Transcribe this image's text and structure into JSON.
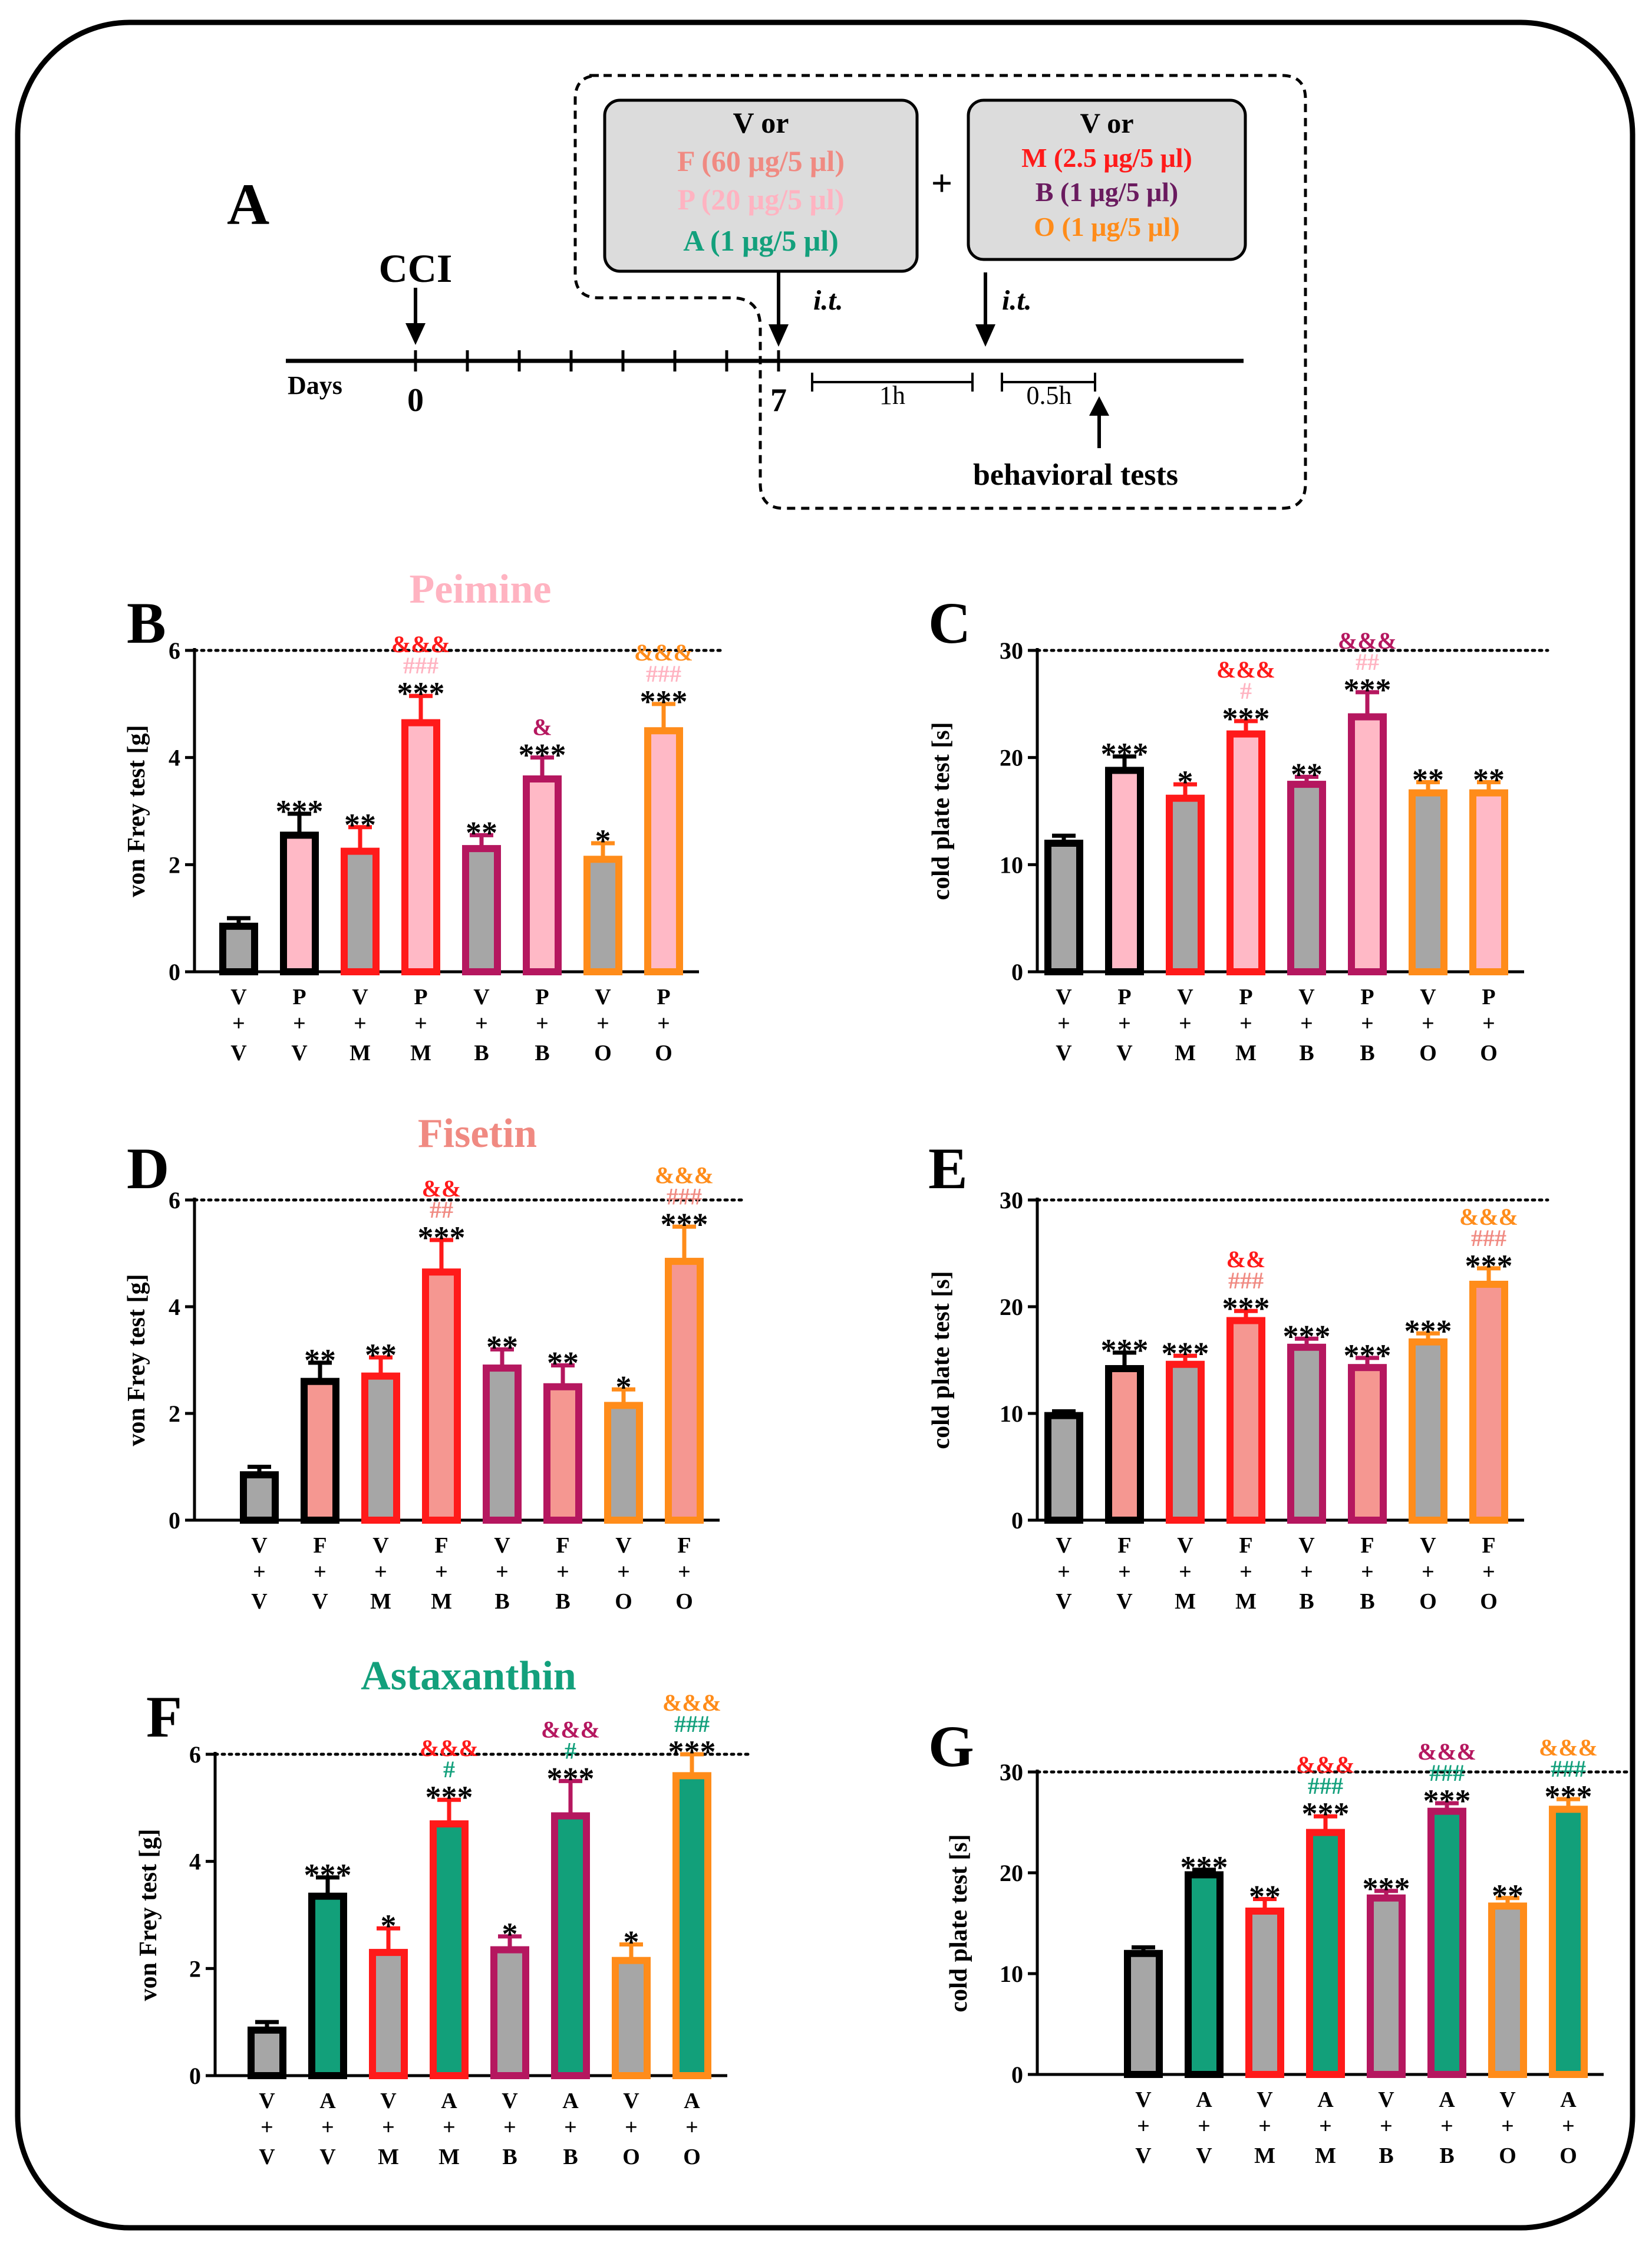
{
  "colors": {
    "black": "#000000",
    "gray": "#a6a6a6",
    "red": "#ff1a1a",
    "magenta": "#b5175f",
    "orange": "#ff8c1a",
    "pink_fill": "#ffb9c6",
    "salmon_fill": "#f59791",
    "green_fill": "#12a07a",
    "pink_text": "#ffb3c1",
    "salmon_text": "#f08a82",
    "green_text": "#13a07c",
    "purple_text": "#6a1b5f",
    "box_fill": "#dcdcdc"
  },
  "scheme": {
    "panel_label": "A",
    "box1": {
      "line1": "V or",
      "line2": "F (60 μg/5 μl)",
      "line3": "P (20 μg/5 μl)",
      "line4": "A (1 μg/5 μl)"
    },
    "plus": "+",
    "box2": {
      "line1": "V or",
      "line2": "M (2.5 μg/5 μl)",
      "line3": "B (1 μg/5 μl)",
      "line4": "O (1 μg/5 μl)"
    },
    "cci": "CCI",
    "it1": "i.t.",
    "it2": "i.t.",
    "days_label": "Days",
    "day0": "0",
    "day7": "7",
    "interval1": "1h",
    "interval2": "0.5h",
    "behavioral": "behavioral tests"
  },
  "section_titles": {
    "peimine": "Peimine",
    "fisetin": "Fisetin",
    "astaxanthin": "Astaxanthin"
  },
  "chart_data": [
    {
      "panel": "B",
      "type": "bar",
      "ylabel": "von Frey test [g]",
      "ylim": [
        0,
        6
      ],
      "yticks": [
        0,
        2,
        4,
        6
      ],
      "ref_line": 6,
      "categories": [
        "V+V",
        "P+V",
        "V+M",
        "P+M",
        "V+B",
        "P+B",
        "V+O",
        "P+O"
      ],
      "top": [
        "V",
        "P",
        "V",
        "P",
        "V",
        "P",
        "V",
        "P"
      ],
      "plus": [
        "+",
        "+",
        "+",
        "+",
        "+",
        "+",
        "+",
        "+"
      ],
      "bottom": [
        "V",
        "V",
        "M",
        "M",
        "B",
        "B",
        "O",
        "O"
      ],
      "values": [
        0.85,
        2.55,
        2.25,
        4.65,
        2.3,
        3.6,
        2.1,
        4.5
      ],
      "errors": [
        0.15,
        0.4,
        0.45,
        0.5,
        0.25,
        0.4,
        0.3,
        0.5
      ],
      "edge": [
        "black",
        "black",
        "red",
        "red",
        "magenta",
        "magenta",
        "orange",
        "orange"
      ],
      "fill": [
        "gray",
        "pink_fill",
        "gray",
        "pink_fill",
        "gray",
        "pink_fill",
        "gray",
        "pink_fill"
      ],
      "annotations": [
        [],
        [
          "***"
        ],
        [
          "**"
        ],
        [
          "***",
          "###",
          "&&&"
        ],
        [
          "**"
        ],
        [
          "***",
          "&"
        ],
        [
          "*"
        ],
        [
          "***",
          "###",
          "&&&"
        ]
      ],
      "annotation_colors": [
        [],
        [
          "black"
        ],
        [
          "black"
        ],
        [
          "black",
          "pink_text",
          "red"
        ],
        [
          "black"
        ],
        [
          "black",
          "magenta"
        ],
        [
          "black"
        ],
        [
          "black",
          "pink_text",
          "orange"
        ]
      ]
    },
    {
      "panel": "C",
      "type": "bar",
      "ylabel": "cold plate test [s]",
      "ylim": [
        0,
        30
      ],
      "yticks": [
        0,
        10,
        20,
        30
      ],
      "ref_line": 30,
      "categories": [
        "V+V",
        "P+V",
        "V+M",
        "P+M",
        "V+B",
        "P+B",
        "V+O",
        "P+O"
      ],
      "top": [
        "V",
        "P",
        "V",
        "P",
        "V",
        "P",
        "V",
        "P"
      ],
      "plus": [
        "+",
        "+",
        "+",
        "+",
        "+",
        "+",
        "+",
        "+"
      ],
      "bottom": [
        "V",
        "V",
        "M",
        "M",
        "B",
        "B",
        "O",
        "O"
      ],
      "values": [
        12,
        18.8,
        16.2,
        22.2,
        17.5,
        23.8,
        16.7,
        16.7
      ],
      "errors": [
        0.7,
        1.3,
        1.3,
        1.2,
        0.7,
        2.3,
        1.0,
        1.0
      ],
      "edge": [
        "black",
        "black",
        "red",
        "red",
        "magenta",
        "magenta",
        "orange",
        "orange"
      ],
      "fill": [
        "gray",
        "pink_fill",
        "gray",
        "pink_fill",
        "gray",
        "pink_fill",
        "gray",
        "pink_fill"
      ],
      "annotations": [
        [],
        [
          "***"
        ],
        [
          "*"
        ],
        [
          "***",
          "#",
          "&&&"
        ],
        [
          "**"
        ],
        [
          "***",
          "##",
          "&&&"
        ],
        [
          "**"
        ],
        [
          "**"
        ]
      ],
      "annotation_colors": [
        [],
        [
          "black"
        ],
        [
          "black"
        ],
        [
          "black",
          "pink_text",
          "red"
        ],
        [
          "black"
        ],
        [
          "black",
          "pink_text",
          "magenta"
        ],
        [
          "black"
        ],
        [
          "black"
        ]
      ]
    },
    {
      "panel": "D",
      "type": "bar",
      "ylabel": "von Frey test [g]",
      "ylim": [
        0,
        6
      ],
      "yticks": [
        0,
        2,
        4,
        6
      ],
      "ref_line": 6,
      "categories": [
        "V+V",
        "F+V",
        "V+M",
        "F+M",
        "V+B",
        "F+B",
        "V+O",
        "F+O"
      ],
      "top": [
        "V",
        "F",
        "V",
        "F",
        "V",
        "F",
        "V",
        "F"
      ],
      "plus": [
        "+",
        "+",
        "+",
        "+",
        "+",
        "+",
        "+",
        "+"
      ],
      "bottom": [
        "V",
        "V",
        "M",
        "M",
        "B",
        "B",
        "O",
        "O"
      ],
      "values": [
        0.85,
        2.6,
        2.7,
        4.65,
        2.85,
        2.5,
        2.15,
        4.85
      ],
      "errors": [
        0.15,
        0.35,
        0.35,
        0.6,
        0.35,
        0.4,
        0.3,
        0.65
      ],
      "edge": [
        "black",
        "black",
        "red",
        "red",
        "magenta",
        "magenta",
        "orange",
        "orange"
      ],
      "fill": [
        "gray",
        "salmon_fill",
        "gray",
        "salmon_fill",
        "gray",
        "salmon_fill",
        "gray",
        "salmon_fill"
      ],
      "annotations": [
        [],
        [
          "**"
        ],
        [
          "**"
        ],
        [
          "***",
          "##",
          "&&"
        ],
        [
          "**"
        ],
        [
          "**"
        ],
        [
          "*"
        ],
        [
          "***",
          "###",
          "&&&"
        ]
      ],
      "annotation_colors": [
        [],
        [
          "black"
        ],
        [
          "black"
        ],
        [
          "black",
          "salmon_text",
          "red"
        ],
        [
          "black"
        ],
        [
          "black"
        ],
        [
          "black"
        ],
        [
          "black",
          "salmon_text",
          "orange"
        ]
      ]
    },
    {
      "panel": "E",
      "type": "bar",
      "ylabel": "cold plate test [s]",
      "ylim": [
        0,
        30
      ],
      "yticks": [
        0,
        10,
        20,
        30
      ],
      "ref_line": 30,
      "categories": [
        "V+V",
        "F+V",
        "V+M",
        "F+M",
        "V+B",
        "F+B",
        "V+O",
        "F+O"
      ],
      "top": [
        "V",
        "F",
        "V",
        "F",
        "V",
        "F",
        "V",
        "F"
      ],
      "plus": [
        "+",
        "+",
        "+",
        "+",
        "+",
        "+",
        "+",
        "+"
      ],
      "bottom": [
        "V",
        "V",
        "M",
        "M",
        "B",
        "B",
        "O",
        "O"
      ],
      "values": [
        9.8,
        14.2,
        14.6,
        18.7,
        16.2,
        14.3,
        16.7,
        22.1
      ],
      "errors": [
        0.4,
        1.5,
        0.8,
        0.9,
        0.8,
        0.9,
        0.8,
        1.5
      ],
      "edge": [
        "black",
        "black",
        "red",
        "red",
        "magenta",
        "magenta",
        "orange",
        "orange"
      ],
      "fill": [
        "gray",
        "salmon_fill",
        "gray",
        "salmon_fill",
        "gray",
        "salmon_fill",
        "gray",
        "salmon_fill"
      ],
      "annotations": [
        [],
        [
          "***"
        ],
        [
          "***"
        ],
        [
          "***",
          "###",
          "&&"
        ],
        [
          "***"
        ],
        [
          "***"
        ],
        [
          "***"
        ],
        [
          "***",
          "###",
          "&&&"
        ]
      ],
      "annotation_colors": [
        [],
        [
          "black"
        ],
        [
          "black"
        ],
        [
          "black",
          "salmon_text",
          "red"
        ],
        [
          "black"
        ],
        [
          "black"
        ],
        [
          "black"
        ],
        [
          "black",
          "salmon_text",
          "orange"
        ]
      ]
    },
    {
      "panel": "F",
      "type": "bar",
      "ylabel": "von Frey test [g]",
      "ylim": [
        0,
        6
      ],
      "yticks": [
        0,
        2,
        4,
        6
      ],
      "ref_line": 6,
      "categories": [
        "V+V",
        "A+V",
        "V+M",
        "A+M",
        "V+B",
        "A+B",
        "V+O",
        "A+O"
      ],
      "top": [
        "V",
        "A",
        "V",
        "A",
        "V",
        "A",
        "V",
        "A"
      ],
      "plus": [
        "+",
        "+",
        "+",
        "+",
        "+",
        "+",
        "+",
        "+"
      ],
      "bottom": [
        "V",
        "V",
        "M",
        "M",
        "B",
        "B",
        "O",
        "O"
      ],
      "values": [
        0.85,
        3.35,
        2.3,
        4.7,
        2.35,
        4.85,
        2.15,
        5.6
      ],
      "errors": [
        0.15,
        0.35,
        0.45,
        0.45,
        0.25,
        0.65,
        0.3,
        0.4
      ],
      "edge": [
        "black",
        "black",
        "red",
        "red",
        "magenta",
        "magenta",
        "orange",
        "orange"
      ],
      "fill": [
        "gray",
        "green_fill",
        "gray",
        "green_fill",
        "gray",
        "green_fill",
        "gray",
        "green_fill"
      ],
      "annotations": [
        [],
        [
          "***"
        ],
        [
          "*"
        ],
        [
          "***",
          "#",
          "&&&"
        ],
        [
          "*"
        ],
        [
          "***",
          "#",
          "&&&"
        ],
        [
          "*"
        ],
        [
          "***",
          "###",
          "&&&"
        ]
      ],
      "annotation_colors": [
        [],
        [
          "black"
        ],
        [
          "black"
        ],
        [
          "black",
          "green_text",
          "red"
        ],
        [
          "black"
        ],
        [
          "black",
          "green_text",
          "magenta"
        ],
        [
          "black"
        ],
        [
          "black",
          "green_text",
          "orange"
        ]
      ]
    },
    {
      "panel": "G",
      "type": "bar",
      "ylabel": "cold plate test [s]",
      "ylim": [
        0,
        30
      ],
      "yticks": [
        0,
        10,
        20,
        30
      ],
      "ref_line": 30,
      "categories": [
        "V+V",
        "A+V",
        "V+M",
        "A+M",
        "V+B",
        "A+B",
        "V+O",
        "A+O"
      ],
      "top": [
        "V",
        "A",
        "V",
        "A",
        "V",
        "A",
        "V",
        "A"
      ],
      "plus": [
        "+",
        "+",
        "+",
        "+",
        "+",
        "+",
        "+",
        "+"
      ],
      "bottom": [
        "V",
        "V",
        "M",
        "M",
        "B",
        "B",
        "O",
        "O"
      ],
      "values": [
        12,
        19.8,
        16.2,
        24,
        17.5,
        26.1,
        16.7,
        26.3
      ],
      "errors": [
        0.6,
        0.5,
        1.2,
        1.6,
        0.7,
        0.8,
        0.8,
        1.0
      ],
      "edge": [
        "black",
        "black",
        "red",
        "red",
        "magenta",
        "magenta",
        "orange",
        "orange"
      ],
      "fill": [
        "gray",
        "green_fill",
        "gray",
        "green_fill",
        "gray",
        "green_fill",
        "gray",
        "green_fill"
      ],
      "annotations": [
        [],
        [
          "***"
        ],
        [
          "**"
        ],
        [
          "***",
          "###",
          "&&&"
        ],
        [
          "***"
        ],
        [
          "***",
          "###",
          "&&&"
        ],
        [
          "**"
        ],
        [
          "***",
          "###",
          "&&&"
        ]
      ],
      "annotation_colors": [
        [],
        [
          "black"
        ],
        [
          "black"
        ],
        [
          "black",
          "green_text",
          "red"
        ],
        [
          "black"
        ],
        [
          "black",
          "green_text",
          "magenta"
        ],
        [
          "black"
        ],
        [
          "black",
          "green_text",
          "orange"
        ]
      ]
    }
  ]
}
